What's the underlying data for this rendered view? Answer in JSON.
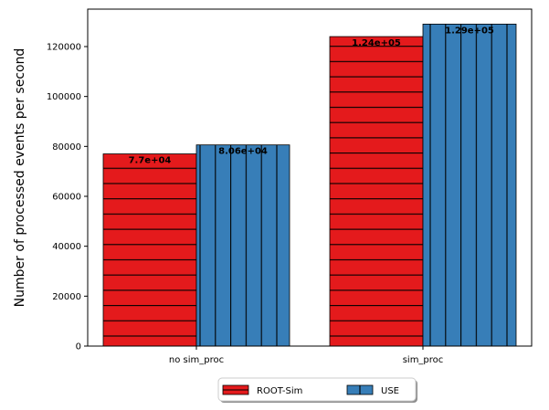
{
  "chart_data": {
    "type": "bar",
    "categories": [
      "no sim_proc",
      "sim_proc"
    ],
    "series": [
      {
        "name": "ROOT-Sim",
        "values": [
          77000,
          124000
        ],
        "labels": [
          "7.7e+04",
          "1.24e+05"
        ],
        "color": "#e41a1c",
        "hatch": "horizontal"
      },
      {
        "name": "USE",
        "values": [
          80600,
          129000
        ],
        "labels": [
          "8.06e+04",
          "1.29e+05"
        ],
        "color": "#377eb8",
        "hatch": "vertical"
      }
    ],
    "ylabel": "Number of processed events per second",
    "xlabel": "",
    "ylim": [
      0,
      135000
    ],
    "yticks": [
      0,
      20000,
      40000,
      60000,
      80000,
      100000,
      120000
    ],
    "ytick_labels": [
      "0",
      "20000",
      "40000",
      "60000",
      "80000",
      "100000",
      "120000"
    ],
    "legend": {
      "placement": "bottom-center-outside",
      "columns": 2
    },
    "grid": false
  }
}
